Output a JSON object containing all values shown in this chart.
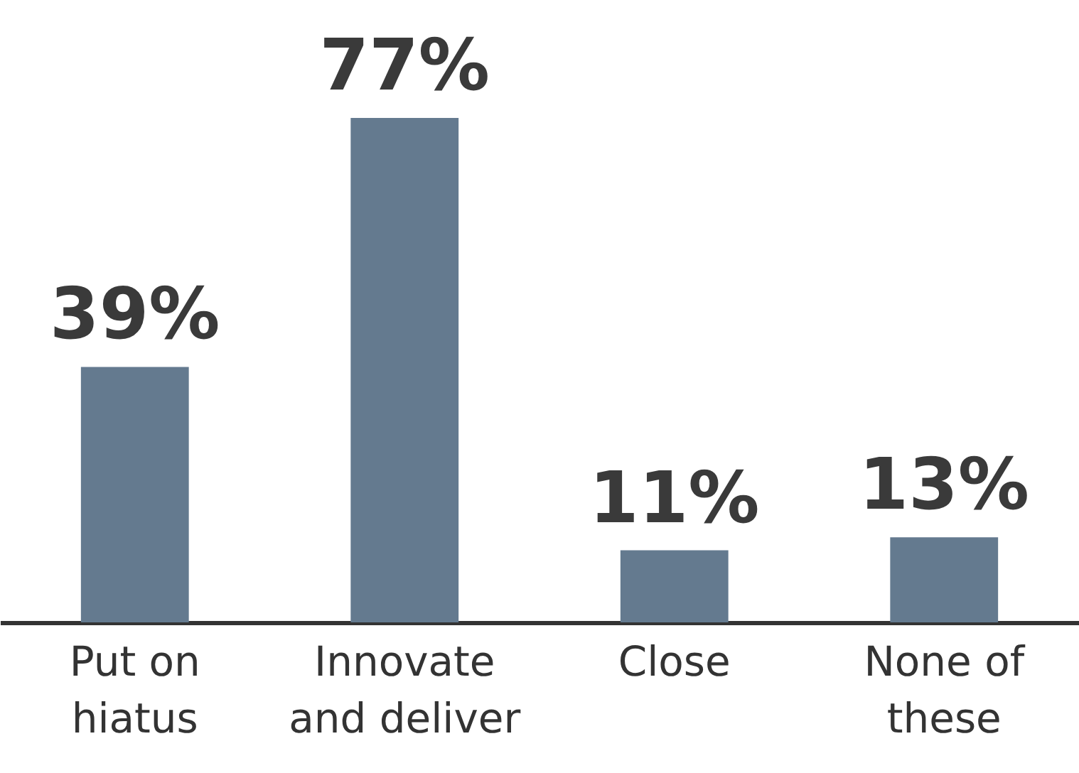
{
  "chart_data": {
    "type": "bar",
    "categories": [
      "Put on hiatus",
      "Innovate and deliver",
      "Close",
      "None of these"
    ],
    "values": [
      39,
      77,
      11,
      13
    ],
    "color": "#647a8f",
    "value_labels": [
      "39%",
      "77%",
      "11%",
      "13%"
    ]
  }
}
